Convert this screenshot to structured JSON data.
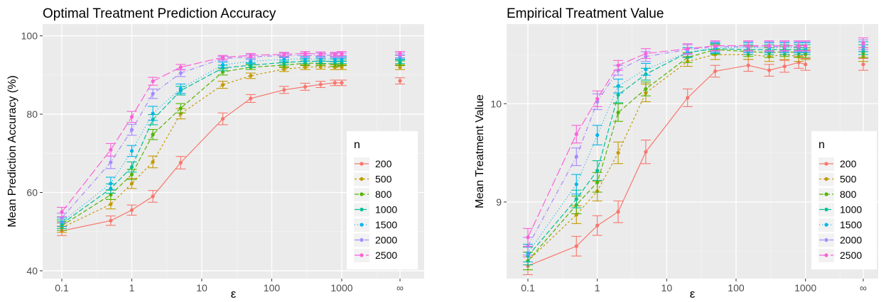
{
  "chart_data": [
    {
      "type": "line",
      "title": "Optimal Treatment Prediction Accuracy",
      "xlabel": "ε",
      "ylabel": "Mean Prediction Accuracy (%)",
      "x_scale": "log",
      "x_ticks": [
        "0.1",
        "1",
        "10",
        "100",
        "1000",
        "∞"
      ],
      "y_ticks": [
        40,
        60,
        80,
        100
      ],
      "ylim": [
        38,
        103
      ],
      "grid": true,
      "legend_title": "n",
      "legend_position": "right",
      "x": [
        0.1,
        0.5,
        1,
        2,
        5,
        20,
        50,
        150,
        300,
        500,
        800,
        1000,
        "∞"
      ],
      "series": [
        {
          "name": "200",
          "color": "#F8766D",
          "dash": "",
          "values": [
            50.2,
            52.8,
            55.5,
            59.0,
            67.6,
            78.8,
            84.0,
            86.2,
            87.0,
            87.6,
            88.0,
            88.0,
            88.5
          ],
          "err": [
            1.2,
            1.2,
            1.3,
            1.5,
            1.6,
            1.5,
            1.0,
            0.9,
            0.9,
            0.8,
            0.7,
            0.7,
            0.8
          ]
        },
        {
          "name": "500",
          "color": "#C49A00",
          "dash": "3,3",
          "values": [
            51.0,
            57.0,
            62.3,
            67.8,
            80.1,
            87.5,
            89.8,
            91.5,
            92.0,
            92.1,
            92.0,
            92.0,
            92.0
          ],
          "err": [
            1.2,
            1.2,
            1.3,
            1.5,
            1.3,
            0.9,
            0.7,
            0.6,
            0.6,
            0.6,
            0.6,
            0.6,
            0.6
          ]
        },
        {
          "name": "800",
          "color": "#53B400",
          "dash": "6,3",
          "values": [
            51.5,
            59.4,
            64.6,
            74.8,
            81.5,
            90.8,
            92.0,
            92.5,
            93.0,
            93.0,
            92.8,
            93.0,
            93.0
          ],
          "err": [
            1.2,
            1.2,
            1.3,
            1.3,
            1.2,
            0.8,
            0.6,
            0.6,
            0.6,
            0.6,
            0.6,
            0.6,
            0.6
          ]
        },
        {
          "name": "1000",
          "color": "#00C094",
          "dash": "7,3",
          "values": [
            52.0,
            61.0,
            66.5,
            78.6,
            86.0,
            91.8,
            92.5,
            93.2,
            93.5,
            93.5,
            93.5,
            93.5,
            93.5
          ],
          "err": [
            1.2,
            1.2,
            1.3,
            1.3,
            1.1,
            0.7,
            0.6,
            0.6,
            0.6,
            0.6,
            0.6,
            0.6,
            0.6
          ]
        },
        {
          "name": "1500",
          "color": "#00B6EB",
          "dash": "1,3",
          "values": [
            52.5,
            62.3,
            70.6,
            80.2,
            86.5,
            92.6,
            93.5,
            94.0,
            94.1,
            94.1,
            94.1,
            94.1,
            94.5
          ],
          "err": [
            1.2,
            1.6,
            1.4,
            1.8,
            1.2,
            0.7,
            0.6,
            0.6,
            0.6,
            0.6,
            0.6,
            0.6,
            0.6
          ]
        },
        {
          "name": "2000",
          "color": "#A58AFF",
          "dash": "7,3,1,3",
          "values": [
            53.5,
            67.7,
            76.0,
            85.2,
            90.5,
            94.2,
            94.6,
            95.0,
            95.0,
            95.0,
            95.0,
            95.0,
            95.0
          ],
          "err": [
            1.2,
            1.6,
            1.4,
            1.2,
            0.9,
            0.6,
            0.6,
            0.6,
            0.6,
            0.6,
            0.6,
            0.6,
            0.6
          ]
        },
        {
          "name": "2500",
          "color": "#FB61D7",
          "dash": "12,4",
          "values": [
            55.0,
            70.9,
            79.3,
            88.4,
            92.0,
            94.5,
            95.0,
            95.3,
            95.5,
            95.4,
            95.3,
            95.5,
            95.5
          ],
          "err": [
            1.2,
            1.6,
            1.4,
            1.0,
            0.7,
            0.5,
            0.5,
            0.5,
            0.5,
            0.5,
            0.5,
            0.5,
            0.5
          ]
        }
      ]
    },
    {
      "type": "line",
      "title": "Empirical Treatment Value",
      "xlabel": "ε",
      "ylabel": "Mean Treatment Value",
      "x_scale": "log",
      "x_ticks": [
        "0.1",
        "1",
        "10",
        "100",
        "1000",
        "∞"
      ],
      "y_ticks": [
        9,
        10
      ],
      "ylim": [
        8.22,
        10.81
      ],
      "grid": true,
      "legend_title": "n",
      "legend_position": "right",
      "x": [
        0.1,
        0.5,
        1,
        2,
        5,
        20,
        50,
        150,
        300,
        500,
        800,
        1000,
        "∞"
      ],
      "series": [
        {
          "name": "200",
          "color": "#F8766D",
          "dash": "",
          "values": [
            8.35,
            8.55,
            8.76,
            8.9,
            9.51,
            10.06,
            10.33,
            10.39,
            10.34,
            10.38,
            10.42,
            10.4,
            10.4
          ],
          "err": [
            0.09,
            0.1,
            0.1,
            0.11,
            0.12,
            0.09,
            0.06,
            0.06,
            0.06,
            0.06,
            0.06,
            0.06,
            0.06
          ]
        },
        {
          "name": "500",
          "color": "#C49A00",
          "dash": "3,3",
          "values": [
            8.4,
            8.87,
            9.11,
            9.5,
            10.11,
            10.43,
            10.5,
            10.5,
            10.48,
            10.5,
            10.48,
            10.5,
            10.48
          ],
          "err": [
            0.09,
            0.09,
            0.1,
            0.11,
            0.09,
            0.05,
            0.05,
            0.05,
            0.05,
            0.05,
            0.05,
            0.05,
            0.05
          ]
        },
        {
          "name": "800",
          "color": "#53B400",
          "dash": "6,3",
          "values": [
            8.4,
            8.97,
            9.2,
            9.91,
            10.15,
            10.47,
            10.55,
            10.53,
            10.52,
            10.53,
            10.52,
            10.52,
            10.52
          ],
          "err": [
            0.09,
            0.09,
            0.1,
            0.09,
            0.07,
            0.05,
            0.05,
            0.05,
            0.05,
            0.05,
            0.05,
            0.05,
            0.05
          ]
        },
        {
          "name": "1000",
          "color": "#00C094",
          "dash": "7,3",
          "values": [
            8.45,
            9.03,
            9.32,
            10.09,
            10.3,
            10.52,
            10.56,
            10.55,
            10.55,
            10.55,
            10.55,
            10.55,
            10.55
          ],
          "err": [
            0.09,
            0.09,
            0.1,
            0.08,
            0.06,
            0.05,
            0.05,
            0.05,
            0.05,
            0.05,
            0.05,
            0.05,
            0.05
          ]
        },
        {
          "name": "1500",
          "color": "#00B6EB",
          "dash": "1,3",
          "values": [
            8.48,
            9.18,
            9.68,
            10.18,
            10.35,
            10.52,
            10.57,
            10.57,
            10.57,
            10.57,
            10.57,
            10.57,
            10.58
          ],
          "err": [
            0.09,
            0.1,
            0.1,
            0.07,
            0.06,
            0.05,
            0.05,
            0.05,
            0.05,
            0.05,
            0.05,
            0.05,
            0.05
          ]
        },
        {
          "name": "2000",
          "color": "#A58AFF",
          "dash": "7,3,1,3",
          "values": [
            8.55,
            9.46,
            10.02,
            10.34,
            10.48,
            10.55,
            10.58,
            10.58,
            10.58,
            10.58,
            10.58,
            10.58,
            10.6
          ],
          "err": [
            0.09,
            0.09,
            0.08,
            0.05,
            0.05,
            0.05,
            0.05,
            0.05,
            0.05,
            0.05,
            0.05,
            0.05,
            0.05
          ]
        },
        {
          "name": "2500",
          "color": "#FB61D7",
          "dash": "12,4",
          "values": [
            8.64,
            9.69,
            10.05,
            10.39,
            10.51,
            10.56,
            10.59,
            10.59,
            10.59,
            10.59,
            10.59,
            10.59,
            10.62
          ],
          "err": [
            0.09,
            0.09,
            0.08,
            0.05,
            0.05,
            0.05,
            0.05,
            0.05,
            0.05,
            0.05,
            0.05,
            0.05,
            0.05
          ]
        }
      ]
    }
  ]
}
